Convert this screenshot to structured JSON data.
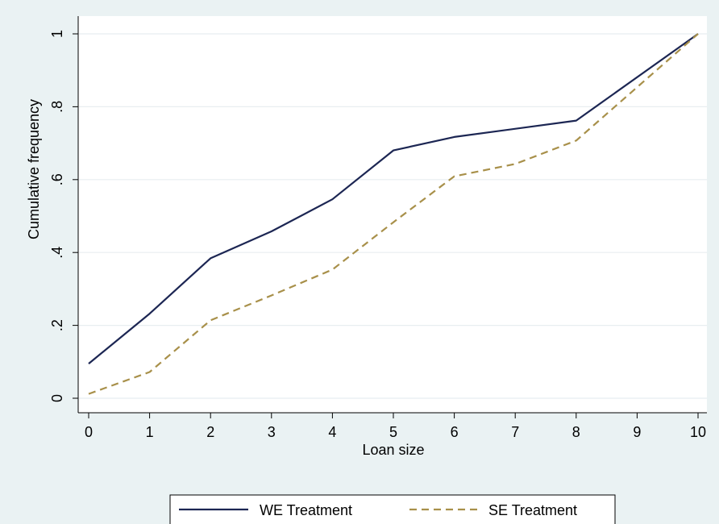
{
  "chart_data": {
    "type": "line",
    "title": "",
    "xlabel": "Loan size",
    "ylabel": "Cumulative frequency",
    "xlim": [
      0,
      10
    ],
    "ylim": [
      0,
      1
    ],
    "x_ticks": [
      0,
      1,
      2,
      3,
      4,
      5,
      6,
      7,
      8,
      9,
      10
    ],
    "x_tick_labels": [
      "0",
      "1",
      "2",
      "3",
      "4",
      "5",
      "6",
      "7",
      "8",
      "9",
      "10"
    ],
    "y_ticks": [
      0,
      0.2,
      0.4,
      0.6,
      0.8,
      1
    ],
    "y_tick_labels": [
      "0",
      ".2",
      ".4",
      ".6",
      ".8",
      "1"
    ],
    "grid": true,
    "legend_position": "bottom",
    "series": [
      {
        "name": "WE Treatment",
        "color": "#1c2653",
        "style": "solid",
        "x": [
          0,
          1,
          2,
          3,
          4,
          5,
          6,
          8,
          10
        ],
        "y": [
          0.095,
          0.232,
          0.384,
          0.458,
          0.546,
          0.68,
          0.717,
          0.762,
          1.0
        ]
      },
      {
        "name": "SE Treatment",
        "color": "#a8904a",
        "style": "dashed",
        "x": [
          0,
          1,
          2,
          3,
          4,
          5,
          6,
          7,
          8,
          10
        ],
        "y": [
          0.012,
          0.072,
          0.214,
          0.282,
          0.353,
          0.483,
          0.609,
          0.643,
          0.707,
          1.0
        ]
      }
    ]
  }
}
